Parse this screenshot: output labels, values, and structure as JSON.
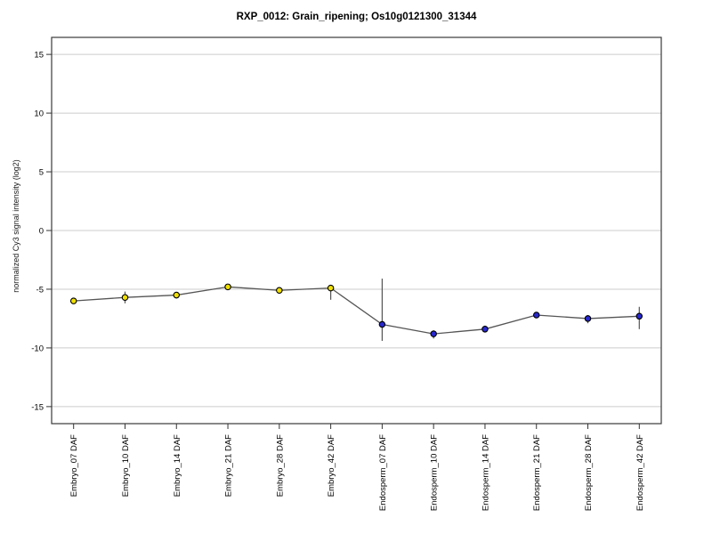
{
  "chart_data": {
    "type": "line",
    "title": "RXP_0012: Grain_ripening; Os10g0121300_31344",
    "xlabel": "",
    "ylabel": "normalized Cy3 signal intensity (log2)",
    "ylim": [
      -16.45,
      16.45
    ],
    "yticks": [
      15,
      10,
      5,
      0,
      -5,
      -10,
      -15
    ],
    "grid": true,
    "legend_position": "none",
    "categories": [
      "Embryo_07 DAF",
      "Embryo_10 DAF",
      "Embryo_14 DAF",
      "Embryo_21 DAF",
      "Embryo_28 DAF",
      "Embryo_42 DAF",
      "Endosperm_07 DAF",
      "Endosperm_10 DAF",
      "Endosperm_14 DAF",
      "Endosperm_21 DAF",
      "Endosperm_28 DAF",
      "Endosperm_42 DAF"
    ],
    "series": [
      {
        "name": "normalized Cy3 signal",
        "values": [
          -6.0,
          -5.7,
          -5.5,
          -4.8,
          -5.1,
          -4.9,
          -8.0,
          -8.8,
          -8.4,
          -7.2,
          -7.5,
          -7.3
        ],
        "error_high": [
          -5.8,
          -5.2,
          -5.3,
          -4.6,
          -4.9,
          -4.8,
          -4.1,
          -8.5,
          -8.1,
          -7.0,
          -7.2,
          -6.5
        ],
        "error_low": [
          -6.2,
          -6.2,
          -5.8,
          -5.0,
          -5.3,
          -5.9,
          -9.4,
          -9.2,
          -8.7,
          -7.4,
          -7.9,
          -8.4
        ],
        "marker_group": [
          "embryo",
          "embryo",
          "embryo",
          "embryo",
          "embryo",
          "embryo",
          "endosperm",
          "endosperm",
          "endosperm",
          "endosperm",
          "endosperm",
          "endosperm"
        ]
      }
    ],
    "colors": {
      "embryo": "#F0E000",
      "endosperm": "#2828D0",
      "marker_stroke": "#000000",
      "line": "#555555",
      "error": "#555555",
      "grid": "#CCCCCC",
      "frame": "#3a3a3a",
      "tick": "#333333",
      "text": "#000000"
    }
  }
}
